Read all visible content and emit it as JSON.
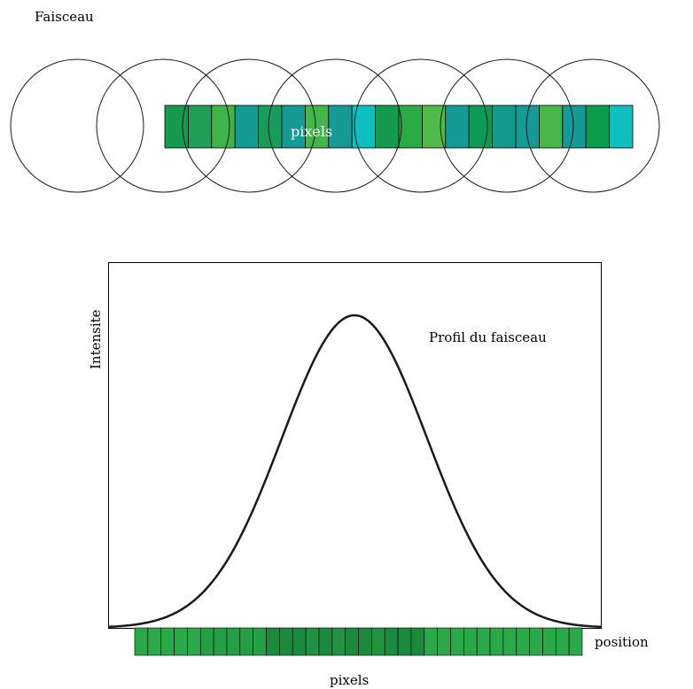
{
  "top": {
    "label": "Faisceau",
    "pixels_label": "pixels",
    "circle_count": 7,
    "pixel_colors": [
      "#169a4f",
      "#1f9f57",
      "#3fb449",
      "#159a96",
      "#199b5b",
      "#159a96",
      "#42b64b",
      "#159a96",
      "#0fbfbf",
      "#169a4f",
      "#2aab45",
      "#4fba48",
      "#159a96",
      "#0e9a56",
      "#139a8a",
      "#159a96",
      "#48b649",
      "#159a96",
      "#0c9b4a",
      "#0fbfbf"
    ]
  },
  "bottom": {
    "title": "Profil du faisceau",
    "ylabel": "Intensite",
    "xlabel": "position",
    "pixels_label": "pixels",
    "profile": {
      "shape": "gaussian",
      "peak_position": 0.5
    },
    "pixel_colors": [
      "#2aa84a",
      "#2aa84a",
      "#2aa84a",
      "#2aa84a",
      "#2aa84a",
      "#259f45",
      "#259f45",
      "#259f45",
      "#259f45",
      "#259f45",
      "#1c8a3e",
      "#1c8a3e",
      "#1c8a3e",
      "#1f9342",
      "#1c8a3e",
      "#1f9342",
      "#1c8a3e",
      "#1c8a3e",
      "#1f9342",
      "#1c8a3e",
      "#1c8a3e",
      "#1c8a3e",
      "#2aa84a",
      "#2aa84a",
      "#2aa84a",
      "#2aa84a",
      "#2aa84a",
      "#2aa84a",
      "#2aa84a",
      "#2aa84a",
      "#2aa84a",
      "#2aa84a",
      "#2aa84a",
      "#2aa84a"
    ]
  }
}
